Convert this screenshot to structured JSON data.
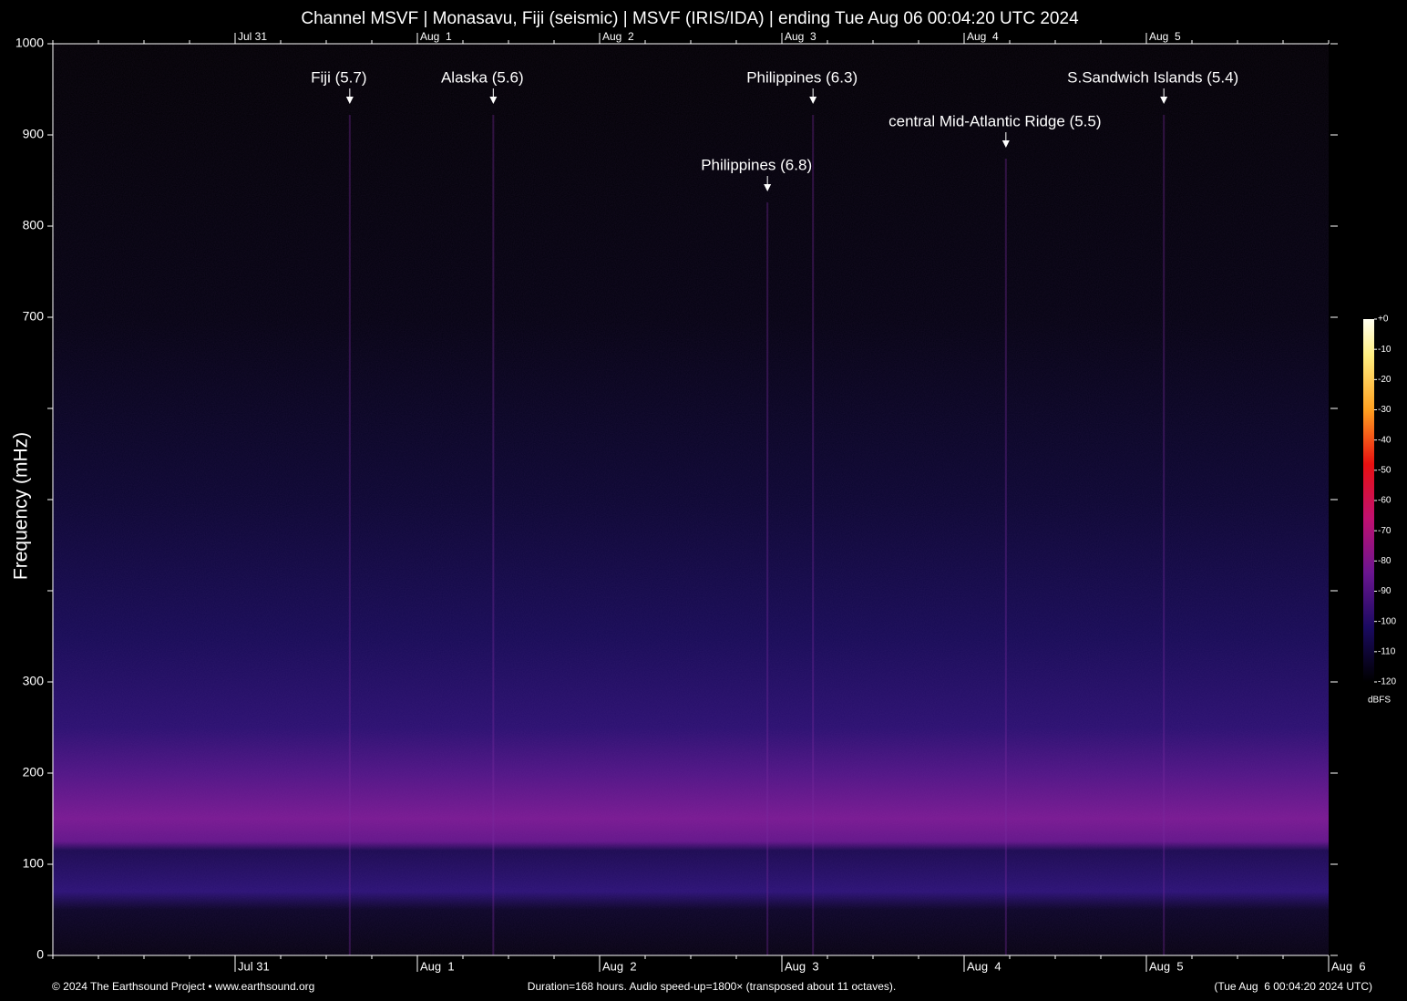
{
  "chart_data": {
    "type": "spectrogram",
    "title": "Channel MSVF | Monasavu, Fiji (seismic) | MSVF (IRIS/IDA) | ending Tue Aug 06 00:04:20 UTC 2024",
    "y_label": "Frequency (mHz)",
    "xlim": [
      0,
      168
    ],
    "xticks": [
      {
        "value": 24,
        "label": "Jul 31"
      },
      {
        "value": 48,
        "label": "Aug  1"
      },
      {
        "value": 72,
        "label": "Aug  2"
      },
      {
        "value": 96,
        "label": "Aug  3"
      },
      {
        "value": 120,
        "label": "Aug  4"
      },
      {
        "value": 144,
        "label": "Aug  5"
      },
      {
        "value": 168,
        "label": "Aug  6"
      }
    ],
    "xminor_step": 6,
    "ylim": [
      0,
      1000
    ],
    "yticks": [
      0,
      100,
      200,
      300,
      {
        "value": 400,
        "label": null
      },
      {
        "value": 500,
        "label": null
      },
      {
        "value": 600,
        "label": null
      },
      700,
      800,
      900,
      1000
    ],
    "events": [
      {
        "label": "Fiji (5.7)",
        "x": 39.1
      },
      {
        "label": "Alaska (5.6)",
        "x": 58.0
      },
      {
        "label": "Philippines (6.3)",
        "x": 100.1
      },
      {
        "label": "S.Sandwich Islands (5.4)",
        "x": 146.3
      },
      {
        "label": "central Mid-Atlantic Ridge (5.5)",
        "x": 125.5
      },
      {
        "label": "Philippines (6.8)",
        "x": 94.1
      }
    ],
    "colorbar": {
      "label": "dBFS",
      "clim": [
        -120,
        0
      ],
      "ticks": [
        {
          "value": 0,
          "label": "+0"
        },
        -10,
        -20,
        -30,
        -40,
        -50,
        -60,
        -70,
        -80,
        -90,
        -100,
        -110,
        -120
      ]
    },
    "footer_left": "© 2024 The Earthsound Project • www.earthsound.org",
    "footer_center": "Duration=168 hours. Audio speed-up=1800× (transposed about 11 octaves).",
    "footer_right": "(Tue Aug  6 00:04:20 2024 UTC)"
  }
}
